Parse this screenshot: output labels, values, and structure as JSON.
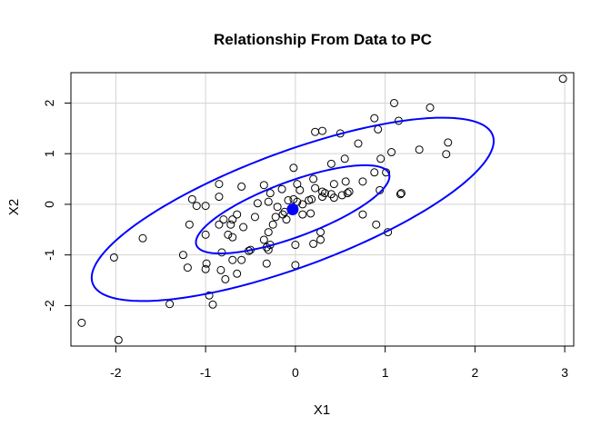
{
  "chart_data": {
    "type": "scatter",
    "title": "Relationship From Data to PC",
    "xlabel": "X1",
    "ylabel": "X2",
    "xlim": [
      -2.5,
      3.1
    ],
    "ylim": [
      -2.8,
      2.6
    ],
    "xticks": [
      -2,
      -1,
      0,
      1,
      2,
      3
    ],
    "yticks": [
      -2,
      -1,
      0,
      1,
      2
    ],
    "xtick_labels": [
      "-2",
      "-1",
      "0",
      "1",
      "2",
      "3"
    ],
    "ytick_labels": [
      "-2",
      "-1",
      "0",
      "1",
      "2"
    ],
    "grid": true,
    "accent_color": "#0000ff",
    "center": {
      "x": -0.03,
      "y": -0.1
    },
    "ellipses": [
      {
        "cx": -0.03,
        "cy": -0.1,
        "a": 1.3,
        "b": 0.48,
        "angle_deg": 37
      },
      {
        "cx": -0.03,
        "cy": -0.1,
        "a": 2.7,
        "b": 1.0,
        "angle_deg": 37
      }
    ],
    "points": [
      [
        2.98,
        2.48
      ],
      [
        1.5,
        1.91
      ],
      [
        1.1,
        2.0
      ],
      [
        1.15,
        1.65
      ],
      [
        0.88,
        1.7
      ],
      [
        0.92,
        1.48
      ],
      [
        1.7,
        1.22
      ],
      [
        1.38,
        1.08
      ],
      [
        1.68,
        0.99
      ],
      [
        1.07,
        1.03
      ],
      [
        0.7,
        1.2
      ],
      [
        0.5,
        1.4
      ],
      [
        0.3,
        1.45
      ],
      [
        0.22,
        1.43
      ],
      [
        0.95,
        0.9
      ],
      [
        0.55,
        0.9
      ],
      [
        0.4,
        0.8
      ],
      [
        0.88,
        0.63
      ],
      [
        1.01,
        0.63
      ],
      [
        0.75,
        0.45
      ],
      [
        1.17,
        0.2
      ],
      [
        1.18,
        0.22
      ],
      [
        0.94,
        0.28
      ],
      [
        0.56,
        0.45
      ],
      [
        0.43,
        0.4
      ],
      [
        0.4,
        0.2
      ],
      [
        0.2,
        0.5
      ],
      [
        0.22,
        0.32
      ],
      [
        0.6,
        0.25
      ],
      [
        0.58,
        0.22
      ],
      [
        0.52,
        0.18
      ],
      [
        0.33,
        0.22
      ],
      [
        0.3,
        0.25
      ],
      [
        0.43,
        0.13
      ],
      [
        0.18,
        0.1
      ],
      [
        0.15,
        0.08
      ],
      [
        0.05,
        0.28
      ],
      [
        0.08,
        0.0
      ],
      [
        0.02,
        0.05
      ],
      [
        -0.02,
        0.72
      ],
      [
        0.02,
        0.4
      ],
      [
        -0.02,
        0.1
      ],
      [
        -0.08,
        0.08
      ],
      [
        -0.15,
        0.3
      ],
      [
        -0.35,
        0.38
      ],
      [
        -0.28,
        0.22
      ],
      [
        -0.42,
        0.02
      ],
      [
        -0.3,
        0.05
      ],
      [
        -0.2,
        -0.05
      ],
      [
        -0.14,
        -0.2
      ],
      [
        -0.22,
        -0.25
      ],
      [
        -0.25,
        -0.4
      ],
      [
        -0.3,
        -0.55
      ],
      [
        -0.35,
        -0.7
      ],
      [
        -0.32,
        -0.85
      ],
      [
        -0.28,
        -0.8
      ],
      [
        -0.3,
        -0.9
      ],
      [
        -0.45,
        -0.25
      ],
      [
        -0.6,
        0.35
      ],
      [
        -0.65,
        -0.2
      ],
      [
        -0.58,
        -0.45
      ],
      [
        -0.7,
        -0.3
      ],
      [
        -0.8,
        -0.3
      ],
      [
        -0.75,
        -0.6
      ],
      [
        -0.7,
        -0.65
      ],
      [
        -0.5,
        -0.9
      ],
      [
        -0.52,
        -0.92
      ],
      [
        -0.72,
        -0.4
      ],
      [
        -0.85,
        -0.4
      ],
      [
        -0.6,
        -1.1
      ],
      [
        -0.7,
        -1.1
      ],
      [
        -0.85,
        0.4
      ],
      [
        -0.85,
        0.15
      ],
      [
        -1.0,
        -0.03
      ],
      [
        -1.1,
        -0.03
      ],
      [
        -1.15,
        0.1
      ],
      [
        -1.0,
        -0.6
      ],
      [
        -1.18,
        -0.4
      ],
      [
        -1.2,
        -1.25
      ],
      [
        -1.25,
        -1.0
      ],
      [
        -0.99,
        -1.17
      ],
      [
        -1.0,
        -1.28
      ],
      [
        -0.82,
        -0.95
      ],
      [
        -0.83,
        -1.3
      ],
      [
        -0.65,
        -1.37
      ],
      [
        -0.78,
        -1.48
      ],
      [
        -0.96,
        -1.8
      ],
      [
        -0.92,
        -1.98
      ],
      [
        -1.4,
        -1.97
      ],
      [
        -1.7,
        -0.67
      ],
      [
        -2.02,
        -1.05
      ],
      [
        -1.97,
        -2.68
      ],
      [
        -2.38,
        -2.34
      ],
      [
        0.0,
        -0.8
      ],
      [
        0.0,
        -1.2
      ],
      [
        0.28,
        -0.55
      ],
      [
        0.28,
        -0.7
      ],
      [
        0.2,
        -0.78
      ],
      [
        0.75,
        -0.2
      ],
      [
        0.9,
        -0.4
      ],
      [
        1.03,
        -0.55
      ],
      [
        -0.32,
        -1.17
      ],
      [
        -0.12,
        -0.15
      ],
      [
        0.08,
        -0.2
      ],
      [
        0.17,
        -0.18
      ],
      [
        0.3,
        0.15
      ],
      [
        -0.1,
        -0.3
      ]
    ]
  }
}
